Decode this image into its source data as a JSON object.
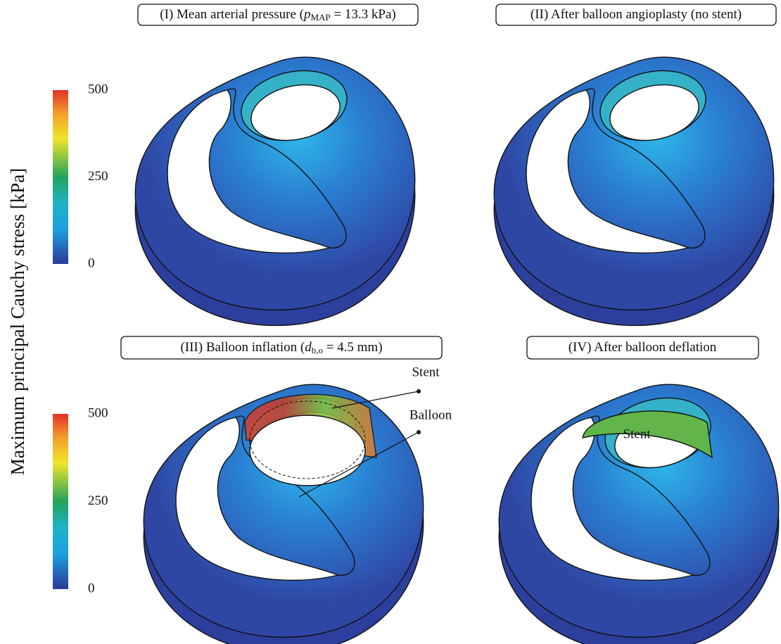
{
  "colorbar_label": "Maximum principal Cauchy stress [kPa]",
  "colorbars": [
    {
      "ticks": [
        0,
        250,
        500
      ]
    },
    {
      "ticks": [
        0,
        250,
        500
      ]
    }
  ],
  "panels": [
    {
      "title": [
        "(I) Mean arterial pressure (",
        "p",
        "MAP",
        " = 13.3 kPa)"
      ]
    },
    {
      "title": [
        "(II) After balloon angioplasty (no stent)"
      ]
    },
    {
      "title": [
        "(III) Balloon inflation (",
        "d",
        "b,o",
        " = 4.5 mm)"
      ],
      "annotations": [
        "Stent",
        "Balloon"
      ]
    },
    {
      "title": [
        "(IV) After balloon deflation"
      ],
      "annotations": [
        "Stent"
      ]
    }
  ]
}
